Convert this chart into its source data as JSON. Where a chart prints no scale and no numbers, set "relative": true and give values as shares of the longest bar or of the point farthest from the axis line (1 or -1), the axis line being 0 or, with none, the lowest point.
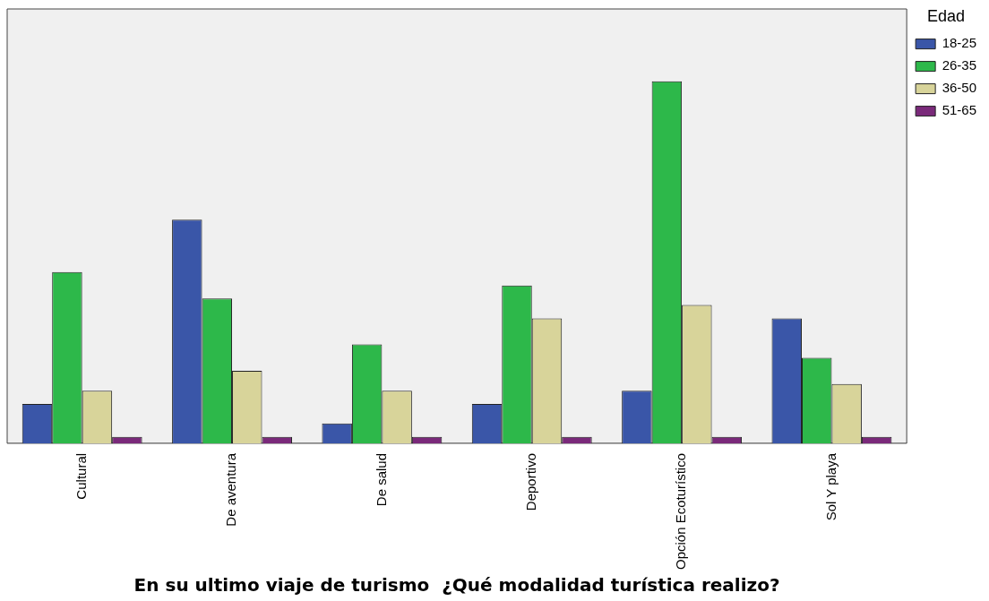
{
  "chart_data": {
    "type": "bar",
    "relative": true,
    "xlabel": "En su ultimo viaje de turismo  ¿Qué modalidad turística realizo?",
    "legend_title": "Edad",
    "legend": "top right",
    "grid": false,
    "categories": [
      "Cultural",
      "De aventura",
      "De salud",
      "Deportivo",
      "Opción Ecoturístico",
      "Sol Y playa"
    ],
    "series": [
      {
        "name": "18-25",
        "color": "#3a56a8",
        "values": [
          0.109,
          0.618,
          0.055,
          0.109,
          0.145,
          0.345
        ]
      },
      {
        "name": "26-35",
        "color": "#2db84a",
        "values": [
          0.473,
          0.4,
          0.273,
          0.436,
          1,
          0.236
        ]
      },
      {
        "name": "36-50",
        "color": "#d8d49a",
        "values": [
          0.145,
          0.2,
          0.145,
          0.345,
          0.382,
          0.164
        ]
      },
      {
        "name": "51-65",
        "color": "#7a2a7a",
        "values": [
          0.018,
          0.018,
          0.018,
          0.018,
          0.018,
          0.018
        ]
      }
    ]
  }
}
